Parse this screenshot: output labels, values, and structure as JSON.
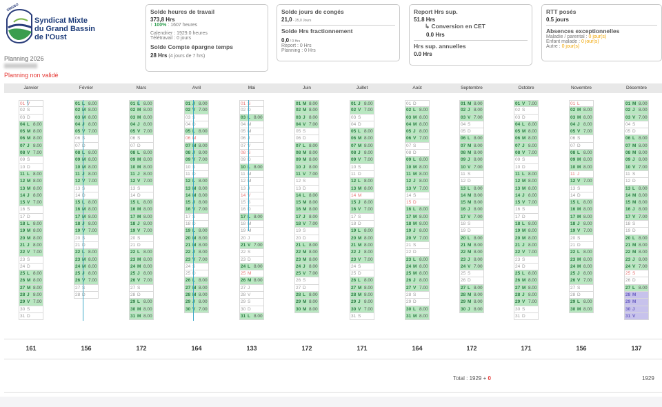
{
  "org": {
    "logo_badge": "SMGBO",
    "name_line1": "Syndicat Mixte",
    "name_line2": "du Grand Bassin",
    "name_line3": "de l'Oust"
  },
  "planning": {
    "year_label": "Planning 2026",
    "status": "Planning non validé"
  },
  "cards": {
    "travail": {
      "title": "Solde heures de travail",
      "value": "373,8 Hrs",
      "percent": "100%",
      "percent_detail": " : 1607 heures",
      "calendar": "Calendrier : 1929.0 heures",
      "teletravail": "Télétravail : 0 jours",
      "cet_title": "Solde Compte épargne temps",
      "cet_value": "28 Hrs",
      "cet_detail": " (4 jours de 7 hrs)"
    },
    "conges": {
      "title": "Solde jours de congés",
      "value": "21,0",
      "value_detail": " - 25,0 Jours",
      "frac_title": "Solde Hrs fractionnement",
      "frac_value": "0,0",
      "frac_detail": " / 0 Hrs",
      "report": "Report : 0 Hrs",
      "planning": "Planning : 0 Hrs"
    },
    "report": {
      "title": "Report Hrs sup.",
      "value": "51.8 Hrs",
      "conversion": "Conversion en CET",
      "conversion_value": "0.0 Hrs",
      "annual_title": "Hrs sup. annuelles",
      "annual_value": "0.0 Hrs"
    },
    "rtt": {
      "title": "RTT posés",
      "value": "0.5 jours",
      "abs_title": "Absences exceptionnelles",
      "maladie_label": "Maladie / parental : ",
      "maladie_value": "0 jour(s)",
      "enfant_label": "Enfant malade : ",
      "enfant_value": "0 jour(s)",
      "autre_label": "Autre : ",
      "autre_value": "0 jour(s)"
    }
  },
  "months": [
    "Janvier",
    "Février",
    "Mars",
    "Avril",
    "Mai",
    "Juin",
    "Juillet",
    "Août",
    "Septembre",
    "Octobre",
    "Novembre",
    "Décembre"
  ],
  "month_totals": [
    "161",
    "156",
    "172",
    "164",
    "133",
    "172",
    "171",
    "164",
    "172",
    "171",
    "156",
    "137"
  ],
  "first_weekday": [
    4,
    0,
    0,
    3,
    5,
    1,
    3,
    6,
    2,
    4,
    0,
    2
  ],
  "month_lengths": [
    31,
    28,
    31,
    30,
    31,
    30,
    31,
    31,
    30,
    31,
    30,
    31
  ],
  "weekday_letters": [
    "L",
    "M",
    "M",
    "J",
    "V",
    "S",
    "D"
  ],
  "hours_per_weekday": [
    "8.00",
    "8.00",
    "8.00",
    "8.00",
    "7.00"
  ],
  "special_hours": {
    "1-16": "5.00",
    "12-31": "4.00"
  },
  "holidays": {
    "1": [
      1
    ],
    "4": [
      6
    ],
    "5": [
      1,
      8,
      14,
      25
    ],
    "7": [
      14
    ],
    "8": [
      15
    ],
    "11": [
      1,
      11
    ],
    "12": [
      25
    ]
  },
  "non_work": {
    "5": [
      4,
      5,
      6,
      7,
      11,
      12,
      13,
      15,
      18,
      19,
      20,
      22,
      27,
      28,
      29
    ]
  },
  "conges": {
    "12": [
      28,
      29,
      30,
      31
    ]
  },
  "grand_total": {
    "label": "Total : 1929 + ",
    "extra": "0",
    "right": "1929"
  }
}
